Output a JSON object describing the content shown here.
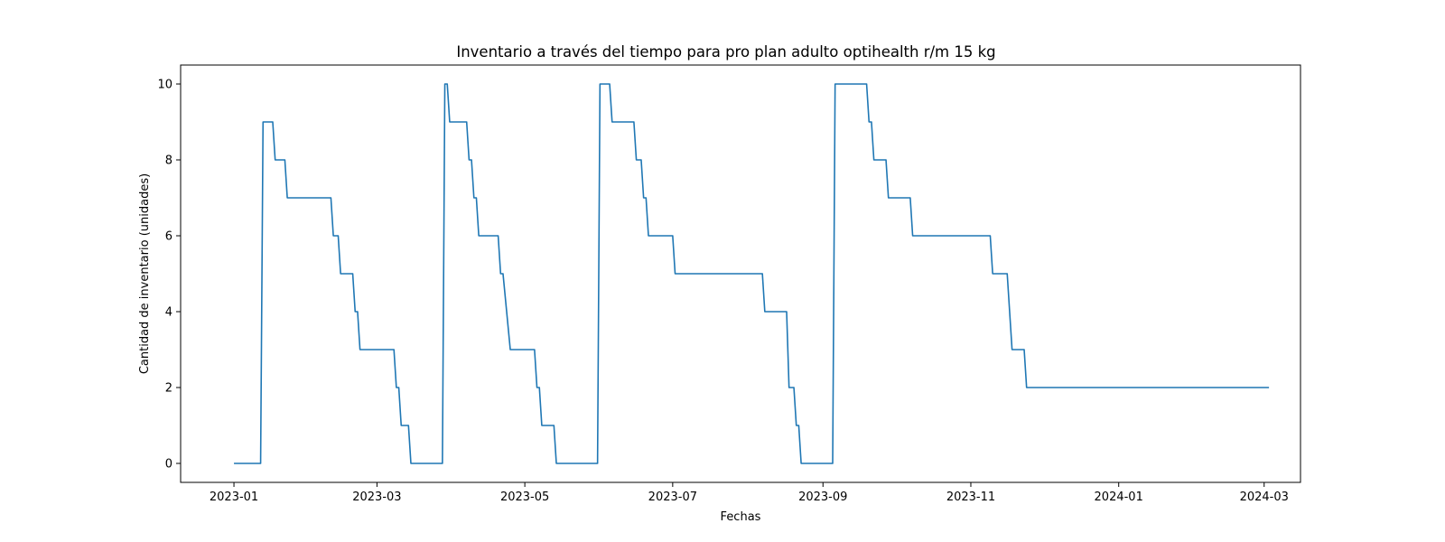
{
  "chart_data": {
    "type": "line",
    "title": "Inventario a través del tiempo para pro plan adulto optihealth r/m 15 kg",
    "xlabel": "Fechas",
    "ylabel": "Cantidad de inventario (unidades)",
    "x_axis_type": "date",
    "xlim": [
      "2022-12-10",
      "2024-03-16"
    ],
    "ylim": [
      -0.5,
      10.5
    ],
    "xticks": [
      "2023-01-01",
      "2023-03-01",
      "2023-05-01",
      "2023-07-01",
      "2023-09-01",
      "2023-11-01",
      "2024-01-01",
      "2024-03-01"
    ],
    "xtick_labels": [
      "2023-01",
      "2023-03",
      "2023-05",
      "2023-07",
      "2023-09",
      "2023-11",
      "2024-01",
      "2024-03"
    ],
    "yticks": [
      0,
      2,
      4,
      6,
      8,
      10
    ],
    "ytick_labels": [
      "0",
      "2",
      "4",
      "6",
      "8",
      "10"
    ],
    "grid": false,
    "legend": "none",
    "colors": {
      "line": "#1f77b4",
      "axes": "#000000",
      "background": "#ffffff"
    },
    "series": [
      {
        "x": [
          "2023-01-01",
          "2023-01-12",
          "2023-01-13",
          "2023-01-17",
          "2023-01-18",
          "2023-01-22",
          "2023-01-23",
          "2023-02-10",
          "2023-02-11",
          "2023-02-13",
          "2023-02-14",
          "2023-02-19",
          "2023-02-20",
          "2023-02-21",
          "2023-02-22",
          "2023-03-08",
          "2023-03-09",
          "2023-03-10",
          "2023-03-11",
          "2023-03-14",
          "2023-03-15",
          "2023-03-28",
          "2023-03-29",
          "2023-03-30",
          "2023-03-31",
          "2023-04-07",
          "2023-04-08",
          "2023-04-09",
          "2023-04-10",
          "2023-04-11",
          "2023-04-12",
          "2023-04-20",
          "2023-04-21",
          "2023-04-22",
          "2023-04-25",
          "2023-05-05",
          "2023-05-06",
          "2023-05-07",
          "2023-05-08",
          "2023-05-13",
          "2023-05-14",
          "2023-05-31",
          "2023-06-01",
          "2023-06-05",
          "2023-06-06",
          "2023-06-15",
          "2023-06-16",
          "2023-06-18",
          "2023-06-19",
          "2023-06-20",
          "2023-06-21",
          "2023-07-01",
          "2023-07-02",
          "2023-08-07",
          "2023-08-08",
          "2023-08-15",
          "2023-08-17",
          "2023-08-18",
          "2023-08-20",
          "2023-08-21",
          "2023-08-22",
          "2023-08-23",
          "2023-09-05",
          "2023-09-06",
          "2023-09-19",
          "2023-09-20",
          "2023-09-21",
          "2023-09-22",
          "2023-09-27",
          "2023-09-28",
          "2023-10-07",
          "2023-10-08",
          "2023-11-09",
          "2023-11-10",
          "2023-11-16",
          "2023-11-18",
          "2023-11-23",
          "2023-11-24",
          "2024-03-03"
        ],
        "y": [
          0,
          0,
          9,
          9,
          8,
          8,
          7,
          7,
          6,
          6,
          5,
          5,
          4,
          4,
          3,
          3,
          2,
          2,
          1,
          1,
          0,
          0,
          10,
          10,
          9,
          9,
          8,
          8,
          7,
          7,
          6,
          6,
          5,
          5,
          3,
          3,
          2,
          2,
          1,
          1,
          0,
          0,
          10,
          10,
          9,
          9,
          8,
          8,
          7,
          7,
          6,
          6,
          5,
          5,
          4,
          4,
          4,
          2,
          2,
          1,
          1,
          0,
          0,
          10,
          10,
          9,
          9,
          8,
          8,
          7,
          7,
          6,
          6,
          5,
          5,
          3,
          3,
          2,
          2
        ]
      }
    ]
  }
}
